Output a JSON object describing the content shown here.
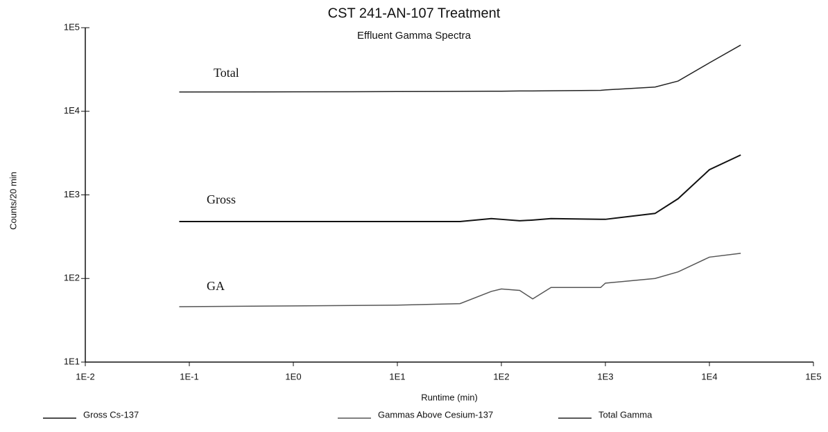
{
  "chart_data": {
    "type": "line",
    "title": "CST 241-AN-107 Treatment",
    "subtitle": "Effluent Gamma Spectra",
    "x_label": "Runtime (min)",
    "y_label": "Counts/20 min",
    "annotations": [
      "Total",
      "Gross",
      "GA"
    ],
    "xscale": "log",
    "yscale": "log",
    "legend": "bottom",
    "xlim": [
      0.01,
      100000
    ],
    "xticks": [
      {
        "value": 0.01,
        "label": "1E-2"
      },
      {
        "value": 0.1,
        "label": "1E-1"
      },
      {
        "value": 1,
        "label": "1E0"
      },
      {
        "value": 10,
        "label": "1E1"
      },
      {
        "value": 100,
        "label": "1E2"
      },
      {
        "value": 1000,
        "label": "1E3"
      },
      {
        "value": 10000,
        "label": "1E4"
      },
      {
        "value": 100000,
        "label": "1E5"
      }
    ],
    "ylim": [
      10,
      100000
    ],
    "yticks": [
      {
        "value": 10,
        "label": "1E1"
      },
      {
        "value": 100,
        "label": "1E2"
      },
      {
        "value": 1000,
        "label": "1E3"
      },
      {
        "value": 10000,
        "label": "1E4"
      },
      {
        "value": 100000,
        "label": "1E5"
      }
    ],
    "x": [
      0.08,
      1,
      10,
      40,
      80,
      100,
      150,
      200,
      300,
      900,
      1000,
      3000,
      5000,
      10000,
      20000
    ],
    "series": [
      {
        "name": "Gross Cs-137",
        "color": "#111111",
        "values": [
          480,
          480,
          480,
          480,
          520,
          510,
          490,
          500,
          520,
          510,
          510,
          600,
          900,
          2000,
          3000
        ]
      },
      {
        "name": "Gammas Above Cesium-137",
        "color": "#555555",
        "values": [
          46,
          47,
          48,
          50,
          70,
          75,
          72,
          57,
          78,
          78,
          88,
          100,
          120,
          180,
          200
        ]
      },
      {
        "name": "Total Gamma",
        "color": "#222222",
        "values": [
          17000,
          17100,
          17200,
          17300,
          17400,
          17400,
          17500,
          17500,
          17600,
          17800,
          18000,
          19500,
          23000,
          38000,
          62000
        ]
      }
    ]
  }
}
